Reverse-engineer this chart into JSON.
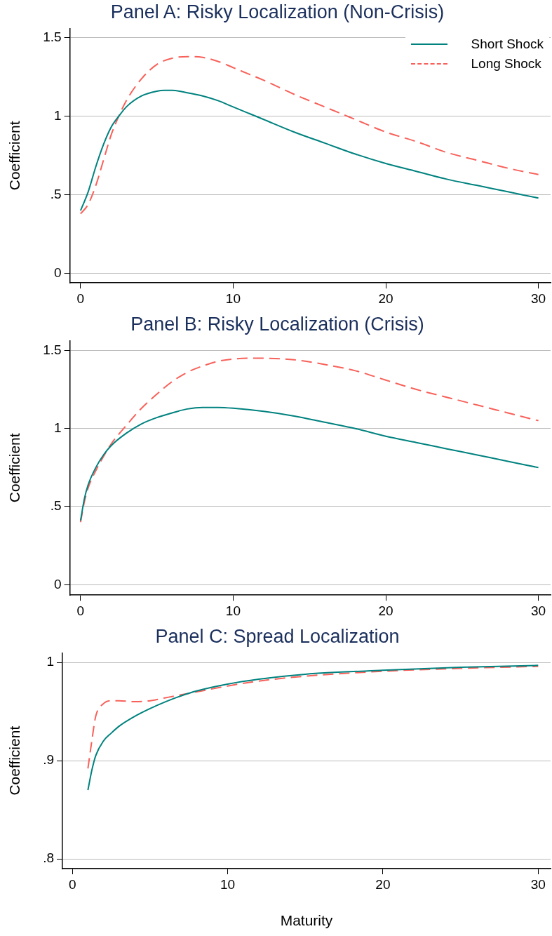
{
  "chart_data": [
    {
      "type": "line",
      "title": "Panel A: Risky Localization (Non-Crisis)",
      "ylabel": "Coefficient",
      "xlim": [
        -0.7,
        30.8
      ],
      "xticks": [
        0,
        10,
        20,
        30
      ],
      "ylim": [
        -0.06,
        1.56
      ],
      "yticks": [
        0,
        {
          "value": 0.5,
          "label": ".5"
        },
        1,
        1.5
      ],
      "grid": "y",
      "legend": "top right",
      "marker": "none",
      "series": [
        {
          "name": "Short Shock",
          "color": "#00827f",
          "line_style": "solid",
          "x": [
            0,
            0.5,
            1,
            1.5,
            2,
            2.5,
            3,
            4,
            5,
            5.5,
            6,
            7,
            8,
            9,
            10,
            11,
            12,
            14,
            16,
            18,
            20,
            22,
            24,
            26,
            28,
            30
          ],
          "values": [
            0.4,
            0.52,
            0.68,
            0.82,
            0.93,
            1.0,
            1.06,
            1.13,
            1.16,
            1.165,
            1.165,
            1.15,
            1.13,
            1.1,
            1.06,
            1.02,
            0.98,
            0.9,
            0.83,
            0.76,
            0.7,
            0.65,
            0.6,
            0.56,
            0.52,
            0.48
          ]
        },
        {
          "name": "Long Shock",
          "color": "#f8615a",
          "line_style": "dashed",
          "x": [
            0,
            0.5,
            1,
            1.5,
            2,
            2.5,
            3,
            4,
            5,
            6,
            7,
            8,
            9,
            10,
            11,
            12,
            14,
            16,
            18,
            20,
            22,
            24,
            26,
            28,
            30
          ],
          "values": [
            0.38,
            0.44,
            0.56,
            0.72,
            0.88,
            1.0,
            1.1,
            1.24,
            1.33,
            1.37,
            1.38,
            1.375,
            1.35,
            1.31,
            1.27,
            1.23,
            1.14,
            1.06,
            0.98,
            0.9,
            0.84,
            0.77,
            0.72,
            0.67,
            0.63
          ]
        }
      ]
    },
    {
      "type": "line",
      "title": "Panel B: Risky Localization (Crisis)",
      "ylabel": "Coefficient",
      "xlim": [
        -0.7,
        30.8
      ],
      "xticks": [
        0,
        10,
        20,
        30
      ],
      "ylim": [
        -0.067,
        1.563
      ],
      "yticks": [
        0,
        {
          "value": 0.5,
          "label": ".5"
        },
        1,
        1.5
      ],
      "grid": "y",
      "marker": "none",
      "series": [
        {
          "color": "#00827f",
          "line_style": "solid",
          "x": [
            0,
            0.25,
            0.5,
            1,
            1.5,
            2,
            3,
            4,
            5,
            6,
            7,
            8,
            9,
            10,
            12,
            14,
            16,
            18,
            20,
            22,
            24,
            26,
            28,
            30
          ],
          "values": [
            0.41,
            0.55,
            0.64,
            0.75,
            0.83,
            0.89,
            0.97,
            1.03,
            1.07,
            1.1,
            1.125,
            1.135,
            1.135,
            1.13,
            1.11,
            1.08,
            1.04,
            1.0,
            0.95,
            0.91,
            0.87,
            0.83,
            0.79,
            0.75
          ]
        },
        {
          "color": "#f8615a",
          "line_style": "dashed",
          "x": [
            0,
            0.25,
            0.5,
            1,
            1.5,
            2,
            3,
            4,
            5,
            6,
            7,
            8,
            9,
            10,
            11,
            12,
            14,
            16,
            18,
            20,
            22,
            24,
            26,
            28,
            30
          ],
          "values": [
            0.4,
            0.53,
            0.62,
            0.73,
            0.82,
            0.9,
            1.02,
            1.13,
            1.22,
            1.3,
            1.36,
            1.4,
            1.43,
            1.445,
            1.45,
            1.45,
            1.44,
            1.41,
            1.37,
            1.31,
            1.25,
            1.2,
            1.15,
            1.1,
            1.05
          ]
        }
      ]
    },
    {
      "type": "line",
      "title": "Panel C: Spread Localization",
      "xlabel": "Maturity",
      "ylabel": "Coefficient",
      "xlim": [
        -0.64,
        30.8
      ],
      "xticks": [
        0,
        10,
        20,
        30
      ],
      "ylim": [
        0.79,
        1.0098
      ],
      "yticks": [
        {
          "value": 0.8,
          "label": ".8"
        },
        {
          "value": 0.9,
          "label": ".9"
        },
        1
      ],
      "grid": "y",
      "marker": "none",
      "series": [
        {
          "color": "#00827f",
          "line_style": "solid",
          "x": [
            1,
            1.25,
            1.5,
            2,
            2.5,
            3,
            4,
            5,
            6,
            7,
            8,
            10,
            12,
            15,
            20,
            25,
            30
          ],
          "values": [
            0.87,
            0.89,
            0.905,
            0.92,
            0.928,
            0.935,
            0.945,
            0.953,
            0.96,
            0.966,
            0.971,
            0.978,
            0.983,
            0.988,
            0.992,
            0.995,
            0.997
          ]
        },
        {
          "color": "#f8615a",
          "line_style": "dashed",
          "x": [
            1,
            1.25,
            1.5,
            2,
            2.5,
            3,
            4,
            5,
            6,
            7,
            8,
            10,
            12,
            15,
            20,
            25,
            30
          ],
          "values": [
            0.892,
            0.92,
            0.945,
            0.958,
            0.961,
            0.961,
            0.96,
            0.961,
            0.964,
            0.967,
            0.97,
            0.976,
            0.981,
            0.986,
            0.991,
            0.994,
            0.996
          ]
        }
      ]
    }
  ]
}
